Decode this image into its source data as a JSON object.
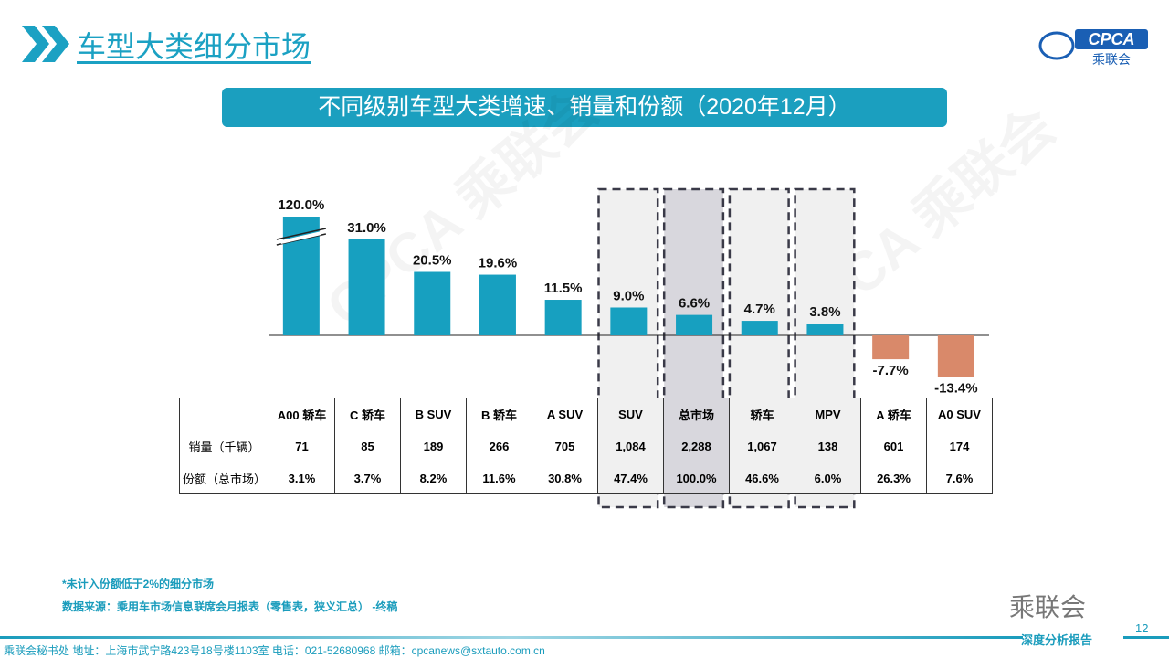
{
  "header": {
    "title": "车型大类细分市场",
    "logo_text": "CPCA",
    "logo_sub": "乘联会"
  },
  "banner": "不同级别车型大类增速、销量和份额（2020年12月）",
  "chart_data": {
    "type": "bar",
    "categories": [
      "A00 轿车",
      "C 轿车",
      "B SUV",
      "B 轿车",
      "A SUV",
      "SUV",
      "总市场",
      "轿车",
      "MPV",
      "A 轿车",
      "A0 SUV"
    ],
    "values": [
      120.0,
      31.0,
      20.5,
      19.6,
      11.5,
      9.0,
      6.6,
      4.7,
      3.8,
      -7.7,
      -13.4
    ],
    "data_labels": [
      "120.0%",
      "31.0%",
      "20.5%",
      "19.6%",
      "11.5%",
      "9.0%",
      "6.6%",
      "4.7%",
      "3.8%",
      "-7.7%",
      "-13.4%"
    ],
    "axis_break_on": "A00 轿车",
    "highlighted": [
      "SUV",
      "总市场",
      "轿车",
      "MPV"
    ],
    "colors": {
      "positive": "#17a0c0",
      "negative": "#d9896a",
      "highlight_fill": "#f0f0f0",
      "total_fill": "#d8d7dd"
    },
    "table": {
      "rows": [
        {
          "label": "销量（千辆）",
          "values": [
            "71",
            "85",
            "189",
            "266",
            "705",
            "1,084",
            "2,288",
            "1,067",
            "138",
            "601",
            "174"
          ]
        },
        {
          "label": "份额（总市场）",
          "values": [
            "3.1%",
            "3.7%",
            "8.2%",
            "11.6%",
            "30.8%",
            "47.4%",
            "100.0%",
            "46.6%",
            "6.0%",
            "26.3%",
            "7.6%"
          ]
        }
      ]
    }
  },
  "notes": [
    "*未计入份额低于2%的细分市场",
    "数据来源：乘用车市场信息联席会月报表（零售表，狭义汇总）  -终稿"
  ],
  "footer": {
    "contact": "乘联会秘书处   地址：上海市武宁路423号18号楼1103室   电话：021-52680968    邮箱：cpcanews@sxtauto.com.cn",
    "tag": "深度分析报告",
    "page": "12",
    "wechat": "乘联会"
  }
}
